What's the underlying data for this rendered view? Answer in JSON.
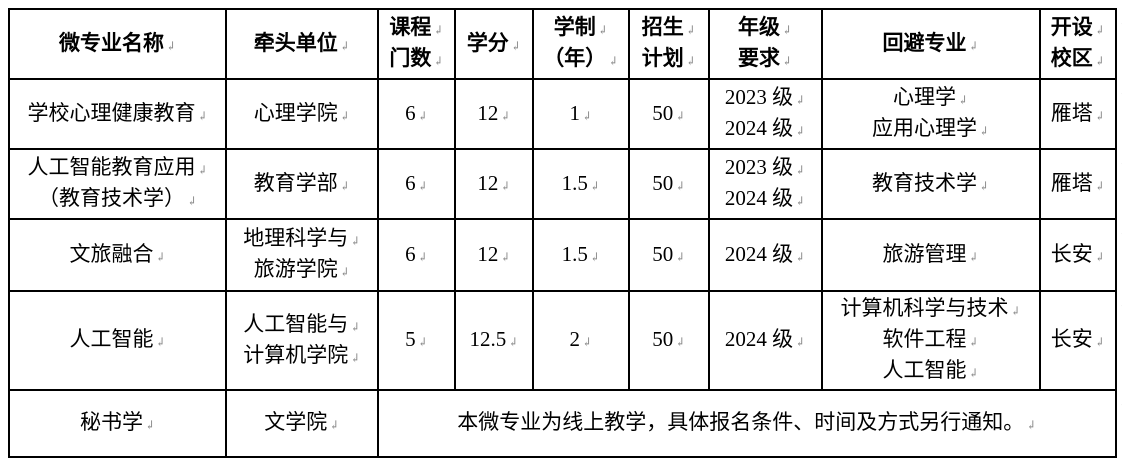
{
  "marks": {
    "paragraph": "↲",
    "row_end": "↲"
  },
  "table": {
    "columns": [
      {
        "lines": [
          "微专业名称"
        ]
      },
      {
        "lines": [
          "牵头单位"
        ]
      },
      {
        "lines": [
          "课程",
          "门数"
        ]
      },
      {
        "lines": [
          "学分"
        ]
      },
      {
        "lines": [
          "学制",
          "（年）"
        ]
      },
      {
        "lines": [
          "招生",
          "计划"
        ]
      },
      {
        "lines": [
          "年级",
          "要求"
        ]
      },
      {
        "lines": [
          "回避专业"
        ]
      },
      {
        "lines": [
          "开设",
          "校区"
        ]
      }
    ],
    "rows": [
      {
        "cells": [
          {
            "lines": [
              "学校心理健康教育"
            ]
          },
          {
            "lines": [
              "心理学院"
            ]
          },
          {
            "lines": [
              "6"
            ]
          },
          {
            "lines": [
              "12"
            ]
          },
          {
            "lines": [
              "1"
            ]
          },
          {
            "lines": [
              "50"
            ]
          },
          {
            "lines": [
              "2023 级",
              "2024 级"
            ]
          },
          {
            "lines": [
              "心理学",
              "应用心理学"
            ]
          },
          {
            "lines": [
              "雁塔"
            ]
          }
        ]
      },
      {
        "cells": [
          {
            "lines": [
              "人工智能教育应用",
              "（教育技术学）"
            ]
          },
          {
            "lines": [
              "教育学部"
            ]
          },
          {
            "lines": [
              "6"
            ]
          },
          {
            "lines": [
              "12"
            ]
          },
          {
            "lines": [
              "1.5"
            ]
          },
          {
            "lines": [
              "50"
            ]
          },
          {
            "lines": [
              "2023 级",
              "2024 级"
            ]
          },
          {
            "lines": [
              "教育技术学"
            ]
          },
          {
            "lines": [
              "雁塔"
            ]
          }
        ]
      },
      {
        "cells": [
          {
            "lines": [
              "文旅融合"
            ]
          },
          {
            "lines": [
              "地理科学与",
              "旅游学院"
            ]
          },
          {
            "lines": [
              "6"
            ]
          },
          {
            "lines": [
              "12"
            ]
          },
          {
            "lines": [
              "1.5"
            ]
          },
          {
            "lines": [
              "50"
            ]
          },
          {
            "lines": [
              "2024 级"
            ]
          },
          {
            "lines": [
              "旅游管理"
            ]
          },
          {
            "lines": [
              "长安"
            ]
          }
        ]
      },
      {
        "cells": [
          {
            "lines": [
              "人工智能"
            ]
          },
          {
            "lines": [
              "人工智能与",
              "计算机学院"
            ]
          },
          {
            "lines": [
              "5"
            ]
          },
          {
            "lines": [
              "12.5"
            ]
          },
          {
            "lines": [
              "2"
            ]
          },
          {
            "lines": [
              "50"
            ]
          },
          {
            "lines": [
              "2024 级"
            ]
          },
          {
            "lines": [
              "计算机科学与技术",
              "软件工程",
              "人工智能"
            ]
          },
          {
            "lines": [
              "长安"
            ]
          }
        ]
      },
      {
        "cells": [
          {
            "lines": [
              "秘书学"
            ]
          },
          {
            "lines": [
              "文学院"
            ]
          },
          {
            "lines": [
              "本微专业为线上教学，具体报名条件、时间及方式另行通知。"
            ],
            "colspan": 7
          }
        ]
      }
    ]
  }
}
